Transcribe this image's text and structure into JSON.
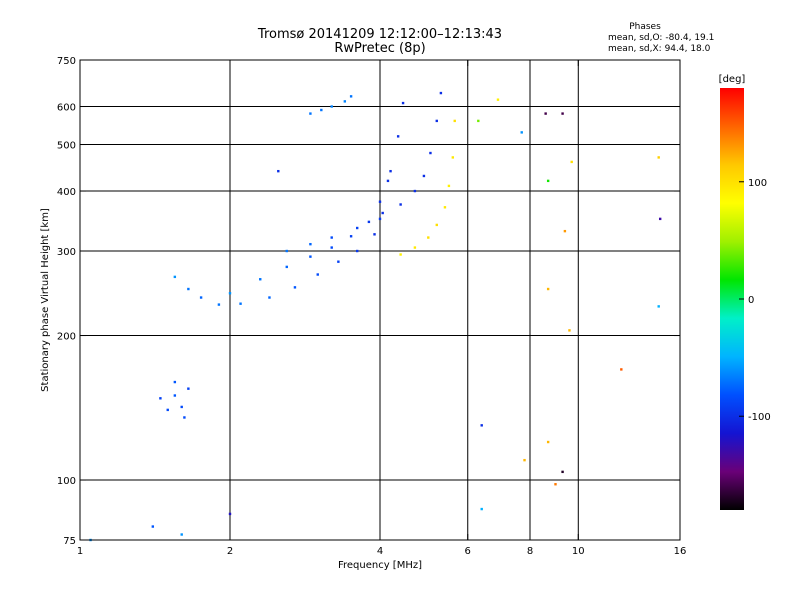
{
  "title": "Tromsø 20141209 12:12:00–12:13:43",
  "subtitle": "RwPretec (8p)",
  "phases_box": {
    "title": "Phases",
    "line1": "mean, sd,O: -80.4, 19.1",
    "line2": "mean, sd,X:  94.4, 18.0"
  },
  "chart_data": {
    "type": "scatter",
    "title": "Tromsø 20141209 12:12:00–12:13:43",
    "subtitle": "RwPretec (8p)",
    "xlabel": "Frequency [MHz]",
    "ylabel": "Stationary phase Virtual Height [km]",
    "x_scale": "log",
    "y_scale": "log",
    "xlim": [
      1,
      16
    ],
    "ylim": [
      75,
      750
    ],
    "x_ticks": [
      1,
      2,
      4,
      6,
      8,
      10,
      16
    ],
    "y_ticks": [
      75,
      100,
      200,
      300,
      400,
      500,
      600,
      750
    ],
    "x_gridlines": [
      2,
      4,
      6,
      8,
      10
    ],
    "y_gridlines": [
      100,
      200,
      300,
      400,
      500,
      600
    ],
    "grid": true,
    "colorbar": {
      "label": "[deg]",
      "range": [
        -180,
        180
      ],
      "ticks": [
        -100,
        0,
        100
      ],
      "placement": "right",
      "colors": [
        "#000000",
        "#6a0078",
        "#1414d2",
        "#0050ff",
        "#00b4ff",
        "#00f0c8",
        "#00e600",
        "#a0f000",
        "#ffff00",
        "#ffc800",
        "#ff6400",
        "#ff0000"
      ]
    },
    "series": [
      {
        "trace": "low_trace",
        "x": [
          1.55,
          1.65,
          1.75,
          1.9,
          2.1,
          2.4,
          2.7,
          3.0,
          3.3,
          3.6,
          3.9,
          4.05,
          4.15
        ],
        "y": [
          265,
          250,
          240,
          232,
          233,
          240,
          252,
          268,
          285,
          300,
          325,
          360,
          420
        ],
        "phase": [
          -60,
          -70,
          -75,
          -70,
          -70,
          -75,
          -80,
          -85,
          -90,
          -95,
          -100,
          -100,
          -100
        ]
      },
      {
        "trace": "mid_trace",
        "x": [
          2.0,
          2.3,
          2.6,
          2.9,
          3.2,
          3.5,
          3.8,
          4.0,
          4.2,
          4.35,
          4.45
        ],
        "y": [
          245,
          262,
          278,
          292,
          305,
          322,
          345,
          380,
          440,
          520,
          610
        ],
        "phase": [
          -60,
          -70,
          -75,
          -80,
          -85,
          -90,
          -95,
          -100,
          -100,
          -100,
          -100
        ]
      },
      {
        "trace": "upper_trace",
        "x": [
          2.6,
          2.9,
          3.2,
          3.6,
          4.0,
          4.4,
          4.7,
          4.9,
          5.05,
          5.2,
          5.3
        ],
        "y": [
          300,
          310,
          320,
          335,
          350,
          375,
          400,
          430,
          480,
          560,
          640
        ],
        "phase": [
          -70,
          -75,
          -85,
          -90,
          -95,
          -100,
          -100,
          -100,
          -100,
          -100,
          -100
        ]
      },
      {
        "trace": "x_mode",
        "x": [
          4.4,
          4.7,
          5.0,
          5.2,
          5.4,
          5.5,
          5.6,
          5.65
        ],
        "y": [
          295,
          305,
          320,
          340,
          370,
          410,
          470,
          560
        ],
        "phase": [
          90,
          95,
          100,
          100,
          95,
          90,
          95,
          100
        ]
      },
      {
        "trace": "upper_arc",
        "x": [
          2.9,
          3.05,
          3.2,
          3.4,
          3.5
        ],
        "y": [
          580,
          590,
          600,
          615,
          630
        ],
        "phase": [
          -70,
          -70,
          -65,
          -65,
          -70
        ]
      },
      {
        "trace": "low_cluster",
        "x": [
          1.45,
          1.5,
          1.55,
          1.6,
          1.65,
          1.55,
          1.62
        ],
        "y": [
          148,
          140,
          150,
          142,
          155,
          160,
          135
        ],
        "phase": [
          -90,
          -85,
          -80,
          -85,
          -90,
          -80,
          -85
        ]
      },
      {
        "trace": "scattered_noise",
        "x": [
          6.3,
          6.9,
          7.7,
          8.6,
          8.7,
          9.3,
          9.7,
          8.7,
          9.4,
          9.6,
          6.4,
          7.8,
          8.7,
          9.3,
          9.0,
          12.2,
          14.5,
          14.6,
          6.4,
          2.5,
          1.05,
          1.4,
          1.6,
          2.0,
          14.5
        ],
        "y": [
          560,
          620,
          530,
          580,
          420,
          580,
          460,
          250,
          330,
          205,
          130,
          110,
          120,
          104,
          98,
          170,
          470,
          350,
          87,
          440,
          75,
          80,
          77,
          85,
          230
        ],
        "phase": [
          40,
          90,
          -60,
          -160,
          20,
          -160,
          100,
          120,
          130,
          120,
          -100,
          120,
          120,
          -170,
          140,
          150,
          110,
          -130,
          -50,
          -100,
          -60,
          -80,
          -60,
          -120,
          -50
        ]
      }
    ]
  }
}
